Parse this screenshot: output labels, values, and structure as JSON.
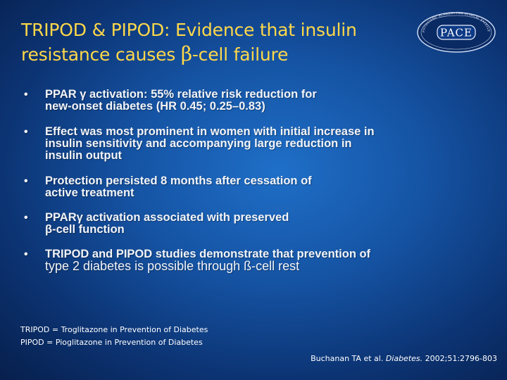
{
  "title": {
    "line1": "TRIPOD & PIPOD: Evidence that insulin",
    "line2_before": "resistance causes ",
    "line2_greek": "β",
    "line2_after": "-cell failure"
  },
  "logo": {
    "text": "PACE",
    "arc_text": "PHYSICIANS' ACADEMY FOR CLINICAL EXCELLENCE · CONTINUING EDUCATION"
  },
  "bullets": [
    {
      "lines": [
        "PPAR γ activation: 55% relative risk reduction for",
        "new-onset diabetes (HR 0.45; 0.25–0.83)"
      ]
    },
    {
      "lines": [
        "Effect was most prominent in women with initial increase in",
        "insulin sensitivity and accompanying large reduction in",
        "insulin output"
      ]
    },
    {
      "lines": [
        "Protection persisted 8 months after cessation of",
        "active treatment"
      ]
    },
    {
      "lines": [
        "PPARγ activation associated with preserved",
        "β-cell function"
      ]
    },
    {
      "lines": [
        "TRIPOD and PIPOD studies demonstrate that prevention of",
        "type 2 diabetes is possible through ß-cell rest"
      ]
    }
  ],
  "bullet_symbol": "•",
  "definitions": [
    "TRIPOD = Troglitazone in Prevention of Diabetes",
    "PIPOD = Pioglitazone in Prevention of Diabetes"
  ],
  "citation": {
    "authors": "Buchanan TA et al. ",
    "journal": "Diabetes.",
    "details": " 2002;51:2796-803"
  },
  "colors": {
    "title": "#ffd84a",
    "body_text": "#f2f4f8",
    "background_center": "#1f6fc8",
    "background_edge": "#071f4c"
  }
}
